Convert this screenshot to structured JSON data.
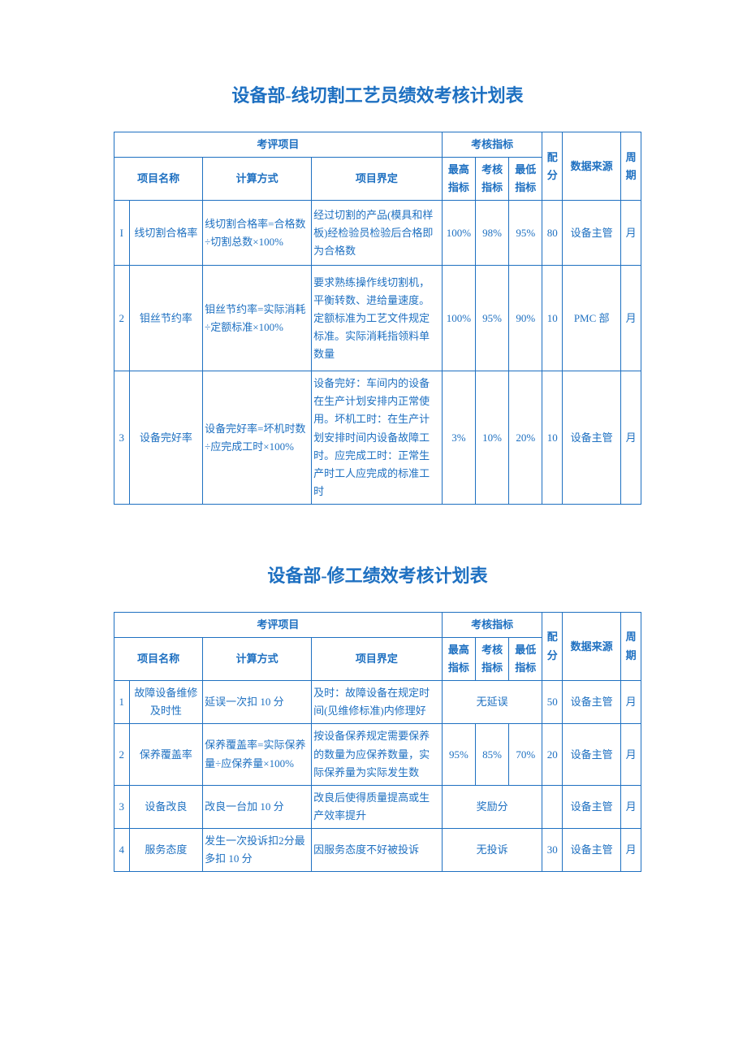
{
  "colors": {
    "primary": "#1e70c1",
    "background": "#ffffff"
  },
  "tables": [
    {
      "title": "设备部-线切割工艺员绩效考核计划表",
      "headers": {
        "eval_project": "考评项目",
        "indicators": "考核指标",
        "project_name": "项目名称",
        "formula": "计算方式",
        "definition": "项目界定",
        "hi": "最高指标",
        "mid": "考核指标",
        "low": "最低指标",
        "score": "配分",
        "source": "数据来源",
        "cycle": "周期"
      },
      "rows": [
        {
          "idx": "I",
          "name": "线切割合格率",
          "formula": "线切割合格率=合格数÷切割总数×100%",
          "definition": "经过切割的产品(模具和样板)经检验员检验后合格即为合格数",
          "hi": "100%",
          "mid": "98%",
          "low": "95%",
          "score": "80",
          "source": "设备主管",
          "cycle": "月"
        },
        {
          "idx": "2",
          "name": "钼丝节约率",
          "formula": "钼丝节约率=实际消耗÷定额标准×100%",
          "definition": "要求熟练操作线切割机，平衡转数、进给量速度。定额标准为工艺文件规定标准。实际消耗指领料单数量",
          "hi": "100%",
          "mid": "95%",
          "low": "90%",
          "score": "10",
          "source": "PMC 部",
          "cycle": "月"
        },
        {
          "idx": "3",
          "name": "设备完好率",
          "formula": "设备完好率=坏机时数÷应完成工时×100%",
          "definition": "设备完好：车间内的设备在生产计划安排内正常使用。坏机工时：在生产计划安排时间内设备故障工时。应完成工时：正常生产时工人应完成的标准工时",
          "hi": "3%",
          "mid": "10%",
          "low": "20%",
          "score": "10",
          "source": "设备主管",
          "cycle": "月"
        }
      ]
    },
    {
      "title": "设备部-修工绩效考核计划表",
      "headers": {
        "eval_project": "考评项目",
        "indicators": "考核指标",
        "project_name": "项目名称",
        "formula": "计算方式",
        "definition": "项目界定",
        "hi": "最高指标",
        "mid": "考核指标",
        "low": "最低指标",
        "score": "配分",
        "source": "数据来源",
        "cycle": "周期"
      },
      "rows": [
        {
          "idx": "1",
          "name": "故障设备维修及时性",
          "formula": "延误一次扣 10 分",
          "definition": "及时：故障设备在规定时间(见维修标准)内修理好",
          "merged": "无延误",
          "score": "50",
          "source": "设备主管",
          "cycle": "月"
        },
        {
          "idx": "2",
          "name": "保养覆盖率",
          "formula": "保养覆盖率=实际保养量÷应保养量×100%",
          "definition": "按设备保养规定需要保养的数量为应保养数量，实际保养量为实际发生数",
          "hi": "95%",
          "mid": "85%",
          "low": "70%",
          "score": "20",
          "source": "设备主管",
          "cycle": "月"
        },
        {
          "idx": "3",
          "name": "设备改良",
          "formula": "改良一台加 10 分",
          "definition": "改良后使得质量提高或生产效率提升",
          "merged": "奖励分",
          "score": "",
          "source": "设备主管",
          "cycle": "月"
        },
        {
          "idx": "4",
          "name": "服务态度",
          "formula": "发生一次投诉扣2分最多扣 10 分",
          "definition": "因服务态度不好被投诉",
          "merged": "无投诉",
          "score": "30",
          "source": "设备主管",
          "cycle": "月"
        }
      ]
    }
  ]
}
